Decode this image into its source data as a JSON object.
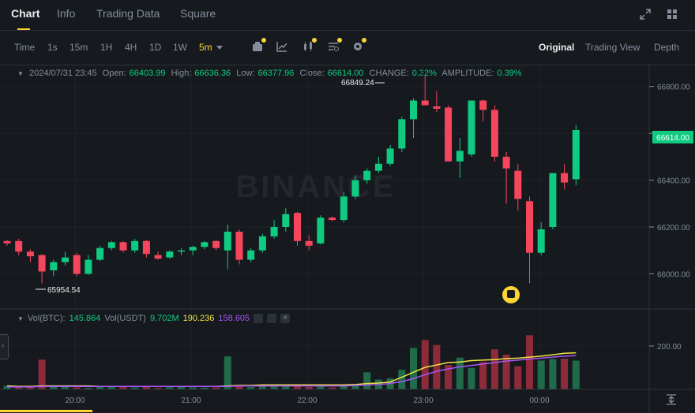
{
  "tabs": [
    {
      "label": "Chart"
    },
    {
      "label": "Info"
    },
    {
      "label": "Trading Data"
    },
    {
      "label": "Square"
    }
  ],
  "timeframes": [
    {
      "label": "Time"
    },
    {
      "label": "1s"
    },
    {
      "label": "15m"
    },
    {
      "label": "1H"
    },
    {
      "label": "4H"
    },
    {
      "label": "1D"
    },
    {
      "label": "1W"
    },
    {
      "label": "5m"
    }
  ],
  "active_timeframe": "5m",
  "views": [
    {
      "label": "Original"
    },
    {
      "label": "Trading View"
    },
    {
      "label": "Depth"
    }
  ],
  "ohlc": {
    "date": "2024/07/31 23:45",
    "open_label": "Open:",
    "open": "66403.99",
    "high_label": "High:",
    "high": "66636.36",
    "low_label": "Low:",
    "low": "66377.96",
    "close_label": "Close:",
    "close": "66614.00",
    "change_label": "CHANGE:",
    "change": "0.32%",
    "amplitude_label": "AMPLITUDE:",
    "amplitude": "0.39%"
  },
  "volume_info": {
    "vol_btc_label": "Vol(BTC):",
    "vol_btc": "145.864",
    "vol_usdt_label": "Vol(USDT)",
    "vol_usdt": "9.702M",
    "ma1": "190.236",
    "ma2": "158.605"
  },
  "price_axis": [
    "66800.00",
    "66600.00",
    "66400.00",
    "66200.00",
    "66000.00"
  ],
  "current_price": "66614.00",
  "high_marker": "66849.24",
  "low_marker": "65954.54",
  "volume_axis": [
    "200.00"
  ],
  "time_axis": [
    "20:00",
    "21:00",
    "22:00",
    "23:00",
    "00:00"
  ],
  "watermark": "BINANCE",
  "colors": {
    "up": "#0ecb81",
    "down": "#f6465d",
    "up_vol": "#1f6b4a",
    "down_vol": "#8e2b3b",
    "accent": "#fcd535",
    "ma_yellow": "#f0e442",
    "ma_purple": "#a855f7",
    "background": "#161a1e"
  },
  "icons": [
    "expand-icon",
    "grid-layout-icon",
    "indicator-icon",
    "draw-line-icon",
    "candle-type-icon",
    "template-icon",
    "settings-icon",
    "eye-icon",
    "settings-small-icon",
    "close-icon",
    "scroll-to-latest-icon",
    "alert-icon"
  ],
  "chart_data": {
    "type": "candlestick",
    "price_range": [
      65850,
      66900
    ],
    "volume_range": [
      0,
      320
    ],
    "candles": [
      {
        "o": 66140,
        "h": 66145,
        "l": 66120,
        "c": 66130
      },
      {
        "o": 66140,
        "h": 66150,
        "l": 66080,
        "c": 66095
      },
      {
        "o": 66095,
        "h": 66105,
        "l": 66050,
        "c": 66075
      },
      {
        "o": 66080,
        "h": 66085,
        "l": 65960,
        "c": 66010
      },
      {
        "o": 66015,
        "h": 66060,
        "l": 65990,
        "c": 66050
      },
      {
        "o": 66050,
        "h": 66095,
        "l": 66035,
        "c": 66070
      },
      {
        "o": 66080,
        "h": 66090,
        "l": 65990,
        "c": 66000
      },
      {
        "o": 66000,
        "h": 66080,
        "l": 65995,
        "c": 66060
      },
      {
        "o": 66060,
        "h": 66120,
        "l": 66055,
        "c": 66110
      },
      {
        "o": 66110,
        "h": 66140,
        "l": 66100,
        "c": 66135
      },
      {
        "o": 66135,
        "h": 66140,
        "l": 66090,
        "c": 66100
      },
      {
        "o": 66100,
        "h": 66150,
        "l": 66090,
        "c": 66140
      },
      {
        "o": 66140,
        "h": 66145,
        "l": 66070,
        "c": 66085
      },
      {
        "o": 66080,
        "h": 66095,
        "l": 66060,
        "c": 66065
      },
      {
        "o": 66070,
        "h": 66100,
        "l": 66065,
        "c": 66095
      },
      {
        "o": 66095,
        "h": 66110,
        "l": 66080,
        "c": 66100
      },
      {
        "o": 66100,
        "h": 66120,
        "l": 66080,
        "c": 66115
      },
      {
        "o": 66115,
        "h": 66140,
        "l": 66105,
        "c": 66135
      },
      {
        "o": 66140,
        "h": 66145,
        "l": 66100,
        "c": 66110
      },
      {
        "o": 66100,
        "h": 66210,
        "l": 66020,
        "c": 66180
      },
      {
        "o": 66180,
        "h": 66190,
        "l": 66040,
        "c": 66060
      },
      {
        "o": 66060,
        "h": 66110,
        "l": 66050,
        "c": 66100
      },
      {
        "o": 66100,
        "h": 66170,
        "l": 66090,
        "c": 66160
      },
      {
        "o": 66160,
        "h": 66230,
        "l": 66150,
        "c": 66200
      },
      {
        "o": 66200,
        "h": 66280,
        "l": 66180,
        "c": 66255
      },
      {
        "o": 66260,
        "h": 66265,
        "l": 66120,
        "c": 66140
      },
      {
        "o": 66140,
        "h": 66165,
        "l": 66100,
        "c": 66120
      },
      {
        "o": 66130,
        "h": 66250,
        "l": 66125,
        "c": 66240
      },
      {
        "o": 66240,
        "h": 66245,
        "l": 66225,
        "c": 66230
      },
      {
        "o": 66230,
        "h": 66350,
        "l": 66220,
        "c": 66330
      },
      {
        "o": 66330,
        "h": 66420,
        "l": 66320,
        "c": 66400
      },
      {
        "o": 66400,
        "h": 66450,
        "l": 66385,
        "c": 66440
      },
      {
        "o": 66440,
        "h": 66500,
        "l": 66430,
        "c": 66470
      },
      {
        "o": 66470,
        "h": 66550,
        "l": 66460,
        "c": 66535
      },
      {
        "o": 66535,
        "h": 66670,
        "l": 66520,
        "c": 66660
      },
      {
        "o": 66660,
        "h": 66750,
        "l": 66580,
        "c": 66740
      },
      {
        "o": 66740,
        "h": 66849,
        "l": 66720,
        "c": 66720
      },
      {
        "o": 66715,
        "h": 66780,
        "l": 66690,
        "c": 66705
      },
      {
        "o": 66710,
        "h": 66720,
        "l": 66480,
        "c": 66480
      },
      {
        "o": 66480,
        "h": 66580,
        "l": 66410,
        "c": 66525
      },
      {
        "o": 66510,
        "h": 66740,
        "l": 66500,
        "c": 66740
      },
      {
        "o": 66740,
        "h": 66745,
        "l": 66650,
        "c": 66700
      },
      {
        "o": 66700,
        "h": 66720,
        "l": 66480,
        "c": 66500
      },
      {
        "o": 66500,
        "h": 66520,
        "l": 66300,
        "c": 66450
      },
      {
        "o": 66440,
        "h": 66470,
        "l": 66270,
        "c": 66320
      },
      {
        "o": 66310,
        "h": 66330,
        "l": 65960,
        "c": 66090
      },
      {
        "o": 66090,
        "h": 66220,
        "l": 66080,
        "c": 66190
      },
      {
        "o": 66200,
        "h": 66430,
        "l": 66190,
        "c": 66430
      },
      {
        "o": 66430,
        "h": 66470,
        "l": 66360,
        "c": 66390
      },
      {
        "o": 66404,
        "h": 66636,
        "l": 66378,
        "c": 66614
      }
    ],
    "volumes": [
      12,
      8,
      10,
      60,
      15,
      10,
      8,
      6,
      10,
      12,
      14,
      8,
      10,
      6,
      9,
      10,
      8,
      7,
      8,
      22,
      12,
      10,
      16,
      14,
      15,
      12,
      10,
      12,
      8,
      14,
      16,
      30,
      20,
      22,
      30,
      55,
      65,
      60,
      35,
      45,
      30,
      40,
      52,
      38,
      35,
      54,
      44,
      40,
      46,
      60
    ],
    "volume_up": [
      true,
      false,
      false,
      false,
      true,
      true,
      false,
      true,
      true,
      true,
      false,
      true,
      false,
      false,
      true,
      true,
      true,
      true,
      false,
      true,
      false,
      true,
      true,
      true,
      true,
      false,
      false,
      true,
      false,
      true,
      true,
      true,
      true,
      true,
      true,
      true,
      false,
      false,
      false,
      true,
      true,
      false,
      false,
      false,
      false,
      false,
      true,
      true,
      false,
      true
    ],
    "volumes_scaled": [
      14,
      8,
      10,
      122,
      15,
      10,
      8,
      6,
      10,
      12,
      14,
      8,
      10,
      6,
      9,
      10,
      8,
      7,
      8,
      135,
      12,
      10,
      16,
      14,
      15,
      12,
      10,
      12,
      8,
      14,
      16,
      70,
      40,
      45,
      80,
      170,
      202,
      182,
      100,
      130,
      88,
      112,
      164,
      142,
      95,
      222,
      118,
      124,
      126,
      118
    ],
    "ma_fast": [
      14,
      12,
      12,
      14,
      14,
      14,
      14,
      14,
      12,
      12,
      12,
      12,
      12,
      12,
      12,
      12,
      12,
      12,
      12,
      14,
      16,
      16,
      18,
      18,
      18,
      18,
      18,
      18,
      18,
      18,
      20,
      24,
      26,
      30,
      50,
      70,
      90,
      100,
      110,
      112,
      118,
      120,
      122,
      126,
      128,
      132,
      136,
      142,
      148,
      150
    ],
    "ma_slow": [
      10,
      10,
      10,
      12,
      12,
      12,
      12,
      12,
      12,
      12,
      12,
      12,
      12,
      12,
      12,
      12,
      12,
      12,
      12,
      12,
      14,
      14,
      14,
      14,
      14,
      14,
      14,
      14,
      14,
      14,
      16,
      18,
      20,
      24,
      32,
      44,
      60,
      74,
      84,
      92,
      98,
      104,
      110,
      116,
      120,
      124,
      128,
      132,
      136,
      138
    ]
  }
}
